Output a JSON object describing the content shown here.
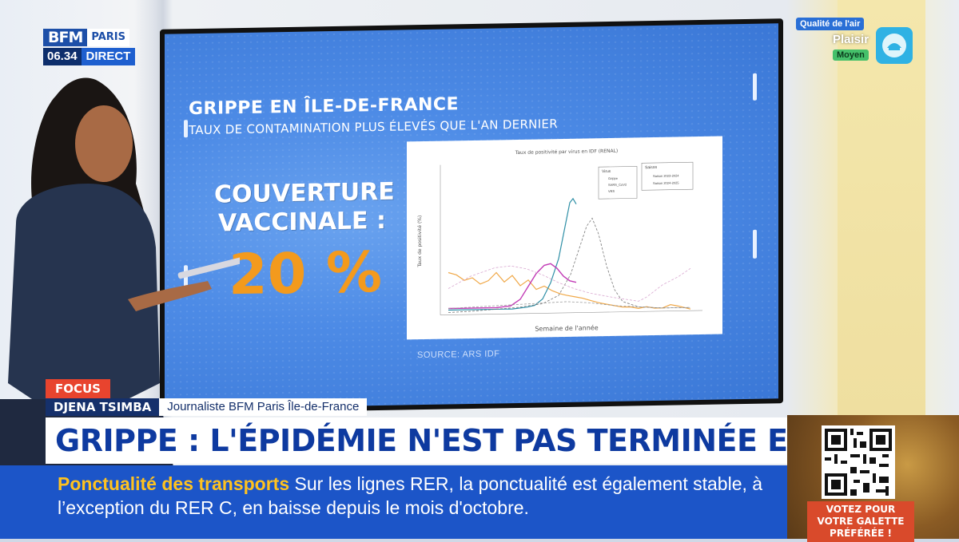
{
  "channel": {
    "brand": "BFM",
    "region": "PARIS",
    "time": "06.34",
    "live": "DIRECT"
  },
  "air_quality": {
    "label": "Qualité de l'air",
    "city": "Plaisir",
    "level": "Moyen",
    "icon": "air-quality-icon",
    "color": "#45c06a"
  },
  "screen": {
    "title": "GRIPPE EN ÎLE-DE-FRANCE",
    "subtitle": "TAUX DE CONTAMINATION PLUS ÉLEVÉS QUE L'AN DERNIER",
    "coverage_label_line1": "COUVERTURE",
    "coverage_label_line2": "VACCINALE :",
    "coverage_value": "20 %",
    "source": "SOURCE:  ARS IDF",
    "chart_title": "Taux de positivité par virus en IDF (RENAL)",
    "chart_xlabel": "Semaine de l'année",
    "chart_ylabel": "Taux de positivité (%)",
    "legend_virus_title": "Virus",
    "legend_virus": [
      "Grippe",
      "SARS_CoV2",
      "VRS"
    ],
    "legend_season_title": "Saison",
    "legend_season": [
      "Saison 2023-2024",
      "Saison 2024-2025"
    ]
  },
  "lower_third": {
    "tag": "FOCUS",
    "name": "DJENA TSIMBA",
    "role": "Journaliste BFM Paris Île-de-France",
    "headline": "GRIPPE : L'ÉPIDÉMIE N'EST PAS TERMINÉE EN IDF"
  },
  "ticker": {
    "label": "Ponctualité des transports",
    "text": "Sur les lignes RER, la ponctualité est également stable, à l’exception du RER C, en baisse depuis le mois d'octobre."
  },
  "promo": {
    "text": "VOTEZ POUR VOTRE GALETTE PRÉFÉRÉE !",
    "qr": "qr-code-icon"
  },
  "colors": {
    "accent_orange": "#f39a1d",
    "brand_blue": "#1d4fa8",
    "headline_blue": "#0e3aa0",
    "ticker_yellow": "#ffc21f",
    "focus_red": "#e8442e"
  }
}
